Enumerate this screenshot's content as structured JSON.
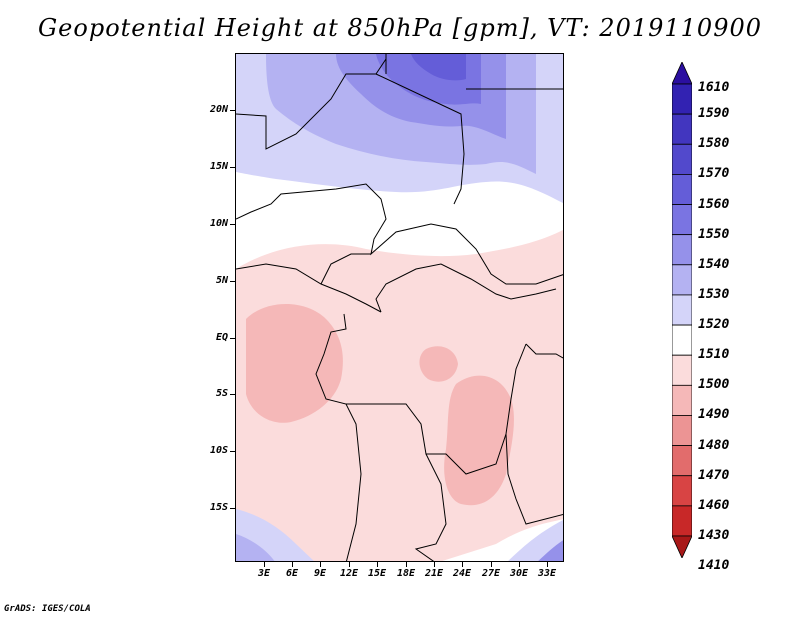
{
  "title": "Geopotential Height at 850hPa [gpm], VT: 2019110900",
  "credit": "GrADS: IGES/COLA",
  "y_axis": {
    "ticks": [
      "20N",
      "15N",
      "10N",
      "5N",
      "EQ",
      "5S",
      "10S",
      "15S"
    ]
  },
  "x_axis": {
    "ticks": [
      "3E",
      "6E",
      "9E",
      "12E",
      "15E",
      "18E",
      "21E",
      "24E",
      "27E",
      "30E",
      "33E"
    ]
  },
  "colorbar": {
    "levels": [
      "1610",
      "1590",
      "1580",
      "1570",
      "1560",
      "1550",
      "1540",
      "1530",
      "1520",
      "1510",
      "1500",
      "1490",
      "1480",
      "1470",
      "1460",
      "1430",
      "1410"
    ],
    "colors": [
      "#2b0fa0",
      "#3222b2",
      "#4236bf",
      "#5249cc",
      "#645dd8",
      "#7a74e2",
      "#9591ea",
      "#b4b2f2",
      "#d4d4f9",
      "#ffffff",
      "#fbdcdc",
      "#f5b8b8",
      "#ec9494",
      "#e26c6c",
      "#d84444",
      "#c82828",
      "#a81818"
    ]
  }
}
